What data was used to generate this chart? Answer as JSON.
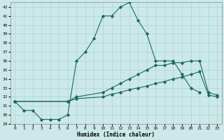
{
  "xlabel": "Humidex (Indice chaleur)",
  "background_color": "#cce8e8",
  "grid_color": "#aad4d4",
  "line_color": "#1a6b5a",
  "xlim": [
    -0.5,
    23.5
  ],
  "ylim": [
    29,
    42.5
  ],
  "yticks": [
    29,
    30,
    31,
    32,
    33,
    34,
    35,
    36,
    37,
    38,
    39,
    40,
    41,
    42
  ],
  "xticks": [
    0,
    1,
    2,
    3,
    4,
    5,
    6,
    7,
    8,
    9,
    10,
    11,
    12,
    13,
    14,
    15,
    16,
    17,
    18,
    19,
    20,
    21,
    22,
    23
  ],
  "line_main": {
    "x": [
      0,
      1,
      2,
      3,
      4,
      5,
      6,
      7,
      8,
      9,
      10,
      11,
      12,
      13,
      14,
      15,
      16,
      17,
      18,
      19,
      20,
      21
    ],
    "y": [
      31.5,
      30.5,
      30.5,
      29.5,
      29.5,
      29.5,
      30.0,
      36.0,
      37.0,
      38.5,
      41.0,
      41.0,
      42.0,
      42.5,
      40.5,
      39.0,
      36.0,
      36.0,
      36.0,
      34.5,
      33.0,
      32.5
    ]
  },
  "line_mid": {
    "x": [
      0,
      6,
      7,
      10,
      11,
      12,
      13,
      14,
      15,
      16,
      17,
      18,
      19,
      20,
      21,
      22,
      23
    ],
    "y": [
      31.5,
      31.5,
      32.0,
      32.5,
      33.0,
      33.5,
      34.0,
      34.5,
      35.0,
      35.5,
      35.5,
      35.8,
      35.8,
      36.0,
      36.0,
      32.5,
      32.2
    ]
  },
  "line_low": {
    "x": [
      0,
      6,
      7,
      10,
      11,
      12,
      13,
      14,
      15,
      16,
      17,
      18,
      19,
      20,
      21,
      22,
      23
    ],
    "y": [
      31.5,
      31.5,
      31.8,
      32.0,
      32.3,
      32.5,
      32.8,
      33.0,
      33.2,
      33.5,
      33.7,
      34.0,
      34.2,
      34.5,
      34.8,
      32.2,
      32.0
    ]
  }
}
